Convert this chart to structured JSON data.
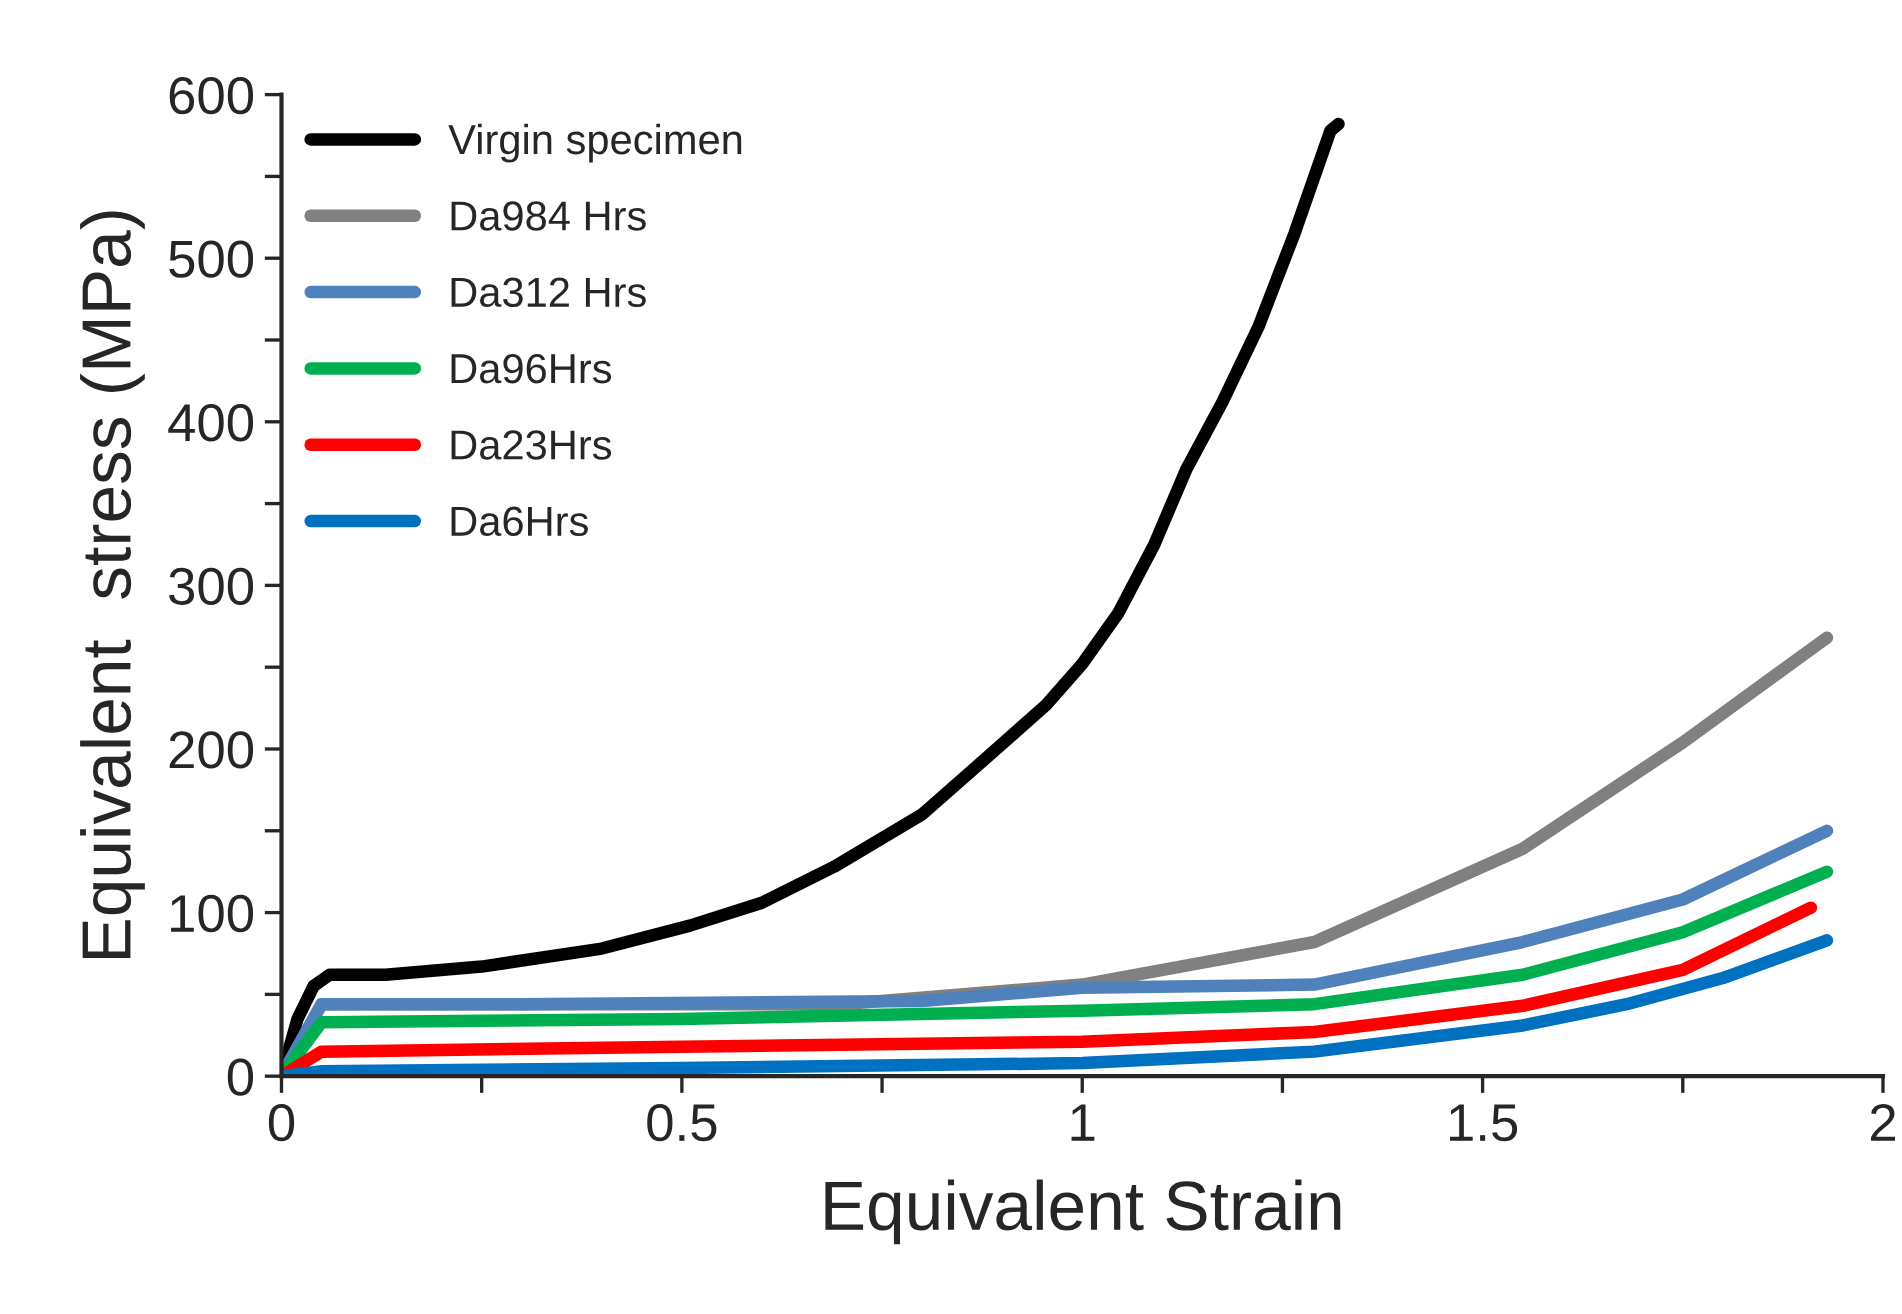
{
  "chart_data": {
    "type": "line",
    "xlabel": "Equivalent Strain",
    "ylabel": "Equivalent  stress (MPa)",
    "xlim": [
      0,
      2
    ],
    "xticks": [
      0,
      {
        "value": 0.25,
        "label": null
      },
      0.5,
      {
        "value": 0.75,
        "label": null
      },
      1,
      {
        "value": 1.25,
        "label": null
      },
      1.5,
      {
        "value": 1.75,
        "label": null
      },
      2
    ],
    "ylim": [
      0,
      600
    ],
    "yticks": [
      0,
      {
        "value": 50,
        "label": null
      },
      100,
      {
        "value": 150,
        "label": null
      },
      200,
      {
        "value": 250,
        "label": null
      },
      300,
      {
        "value": 350,
        "label": null
      },
      400,
      {
        "value": 450,
        "label": null
      },
      500,
      {
        "value": 550,
        "label": null
      },
      600
    ],
    "grid": false,
    "legend": "top left",
    "marker": "none",
    "line_style": "solid",
    "series": [
      {
        "name": "Virgin specimen",
        "color": "#000000",
        "x": [
          0,
          0.02,
          0.04,
          0.06,
          0.13,
          0.25,
          0.4,
          0.51,
          0.6,
          0.69,
          0.8,
          0.865,
          0.955,
          1.0,
          1.045,
          1.09,
          1.13,
          1.175,
          1.22,
          1.265,
          1.31,
          1.32
        ],
        "values": [
          0,
          35,
          55,
          62,
          62,
          67,
          78,
          92,
          106,
          128,
          160,
          188,
          227,
          252,
          283,
          325,
          371,
          412,
          458,
          515,
          578,
          582
        ]
      },
      {
        "name": "Da984 Hrs",
        "color": "#808080",
        "x": [
          0,
          0.05,
          0.3,
          0.7,
          1.0,
          1.29,
          1.55,
          1.75,
          1.93
        ],
        "values": [
          0,
          44,
          44,
          44,
          56,
          82,
          139,
          204,
          268
        ]
      },
      {
        "name": "Da312 Hrs",
        "color": "#4f81bd",
        "x": [
          0,
          0.05,
          0.3,
          0.8,
          1.0,
          1.29,
          1.55,
          1.75,
          1.93
        ],
        "values": [
          0,
          44,
          44,
          46,
          54,
          56,
          82,
          108,
          150
        ]
      },
      {
        "name": "Da96Hrs",
        "color": "#00b050",
        "x": [
          0,
          0.05,
          0.5,
          1.0,
          1.29,
          1.55,
          1.75,
          1.93
        ],
        "values": [
          0,
          33,
          35,
          40,
          44,
          62,
          88,
          125
        ]
      },
      {
        "name": "Da23Hrs",
        "color": "#ff0000",
        "x": [
          0,
          0.05,
          0.5,
          1.0,
          1.29,
          1.55,
          1.75,
          1.91
        ],
        "values": [
          0,
          15,
          18,
          21,
          27,
          43,
          65,
          103
        ]
      },
      {
        "name": "Da6Hrs",
        "color": "#0070c0",
        "x": [
          0,
          0.05,
          0.5,
          1.0,
          1.29,
          1.55,
          1.68,
          1.8,
          1.93
        ],
        "values": [
          0,
          3,
          5,
          8,
          15,
          31,
          44,
          60,
          83
        ]
      }
    ]
  }
}
